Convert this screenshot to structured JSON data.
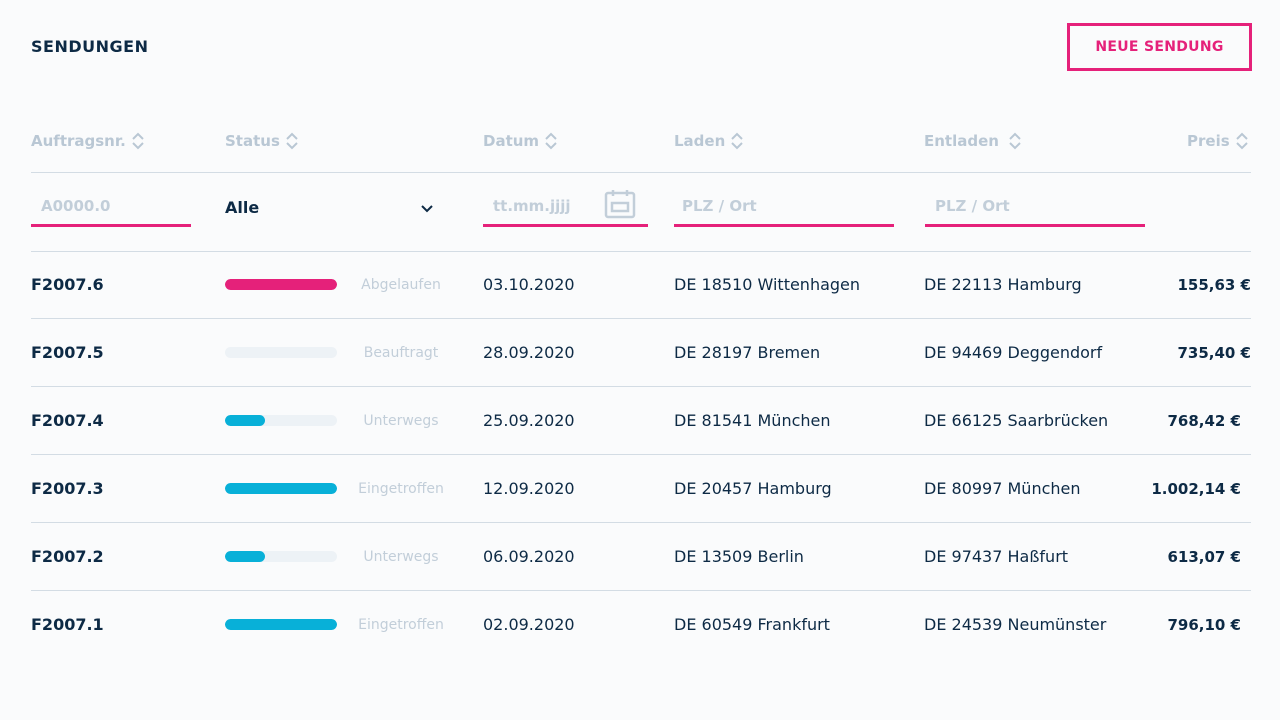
{
  "page": {
    "title": "SENDUNGEN",
    "new_button": "NEUE SENDUNG"
  },
  "colors": {
    "accent": "#e5217a",
    "progress": "#08b0d8",
    "text": "#0d2a45",
    "muted": "#b9c7d4"
  },
  "columns": {
    "order": "Auftragsnr.",
    "status": "Status",
    "date": "Datum",
    "load": "Laden",
    "unload": "Entladen",
    "price": "Preis"
  },
  "filters": {
    "order_placeholder": "A0000.0",
    "status_value": "Alle",
    "date_placeholder": "tt.mm.jjjj",
    "load_placeholder": "PLZ / Ort",
    "unload_placeholder": "PLZ / Ort"
  },
  "rows": [
    {
      "id": "F2007.6",
      "status": "Abgelaufen",
      "progress": 1.0,
      "state": "expired",
      "date": "03.10.2020",
      "load": "DE 18510 Wittenhagen",
      "unload": "DE 22113 Hamburg",
      "price": "155,63 €"
    },
    {
      "id": "F2007.5",
      "status": "Beauftragt",
      "progress": 0.0,
      "state": "ordered",
      "date": "28.09.2020",
      "load": "DE 28197 Bremen",
      "unload": "DE 94469 Deggendorf",
      "price": "735,40 €"
    },
    {
      "id": "F2007.4",
      "status": "Unterwegs",
      "progress": 0.36,
      "state": "transit",
      "date": "25.09.2020",
      "load": "DE 81541 München",
      "unload": "DE 66125 Saarbrücken",
      "price": "768,42 €"
    },
    {
      "id": "F2007.3",
      "status": "Eingetroffen",
      "progress": 1.0,
      "state": "arrived",
      "date": "12.09.2020",
      "load": "DE 20457 Hamburg",
      "unload": "DE 80997 München",
      "price": "1.002,14 €"
    },
    {
      "id": "F2007.2",
      "status": "Unterwegs",
      "progress": 0.36,
      "state": "transit",
      "date": "06.09.2020",
      "load": "DE 13509 Berlin",
      "unload": "DE 97437 Haßfurt",
      "price": "613,07 €"
    },
    {
      "id": "F2007.1",
      "status": "Eingetroffen",
      "progress": 1.0,
      "state": "arrived",
      "date": "02.09.2020",
      "load": "DE 60549 Frankfurt",
      "unload": "DE 24539 Neumünster",
      "price": "796,10 €"
    }
  ]
}
